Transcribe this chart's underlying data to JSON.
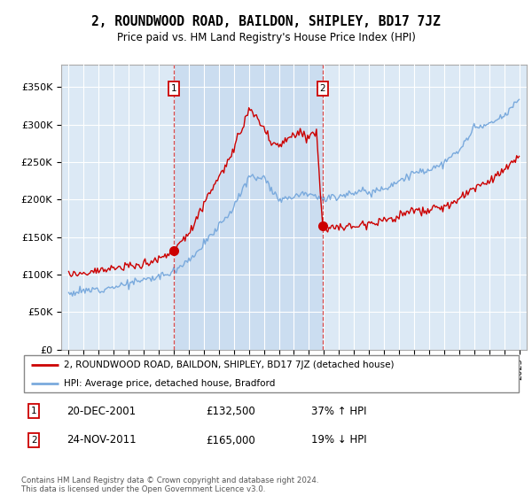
{
  "title": "2, ROUNDWOOD ROAD, BAILDON, SHIPLEY, BD17 7JZ",
  "subtitle": "Price paid vs. HM Land Registry's House Price Index (HPI)",
  "hpi_label": "HPI: Average price, detached house, Bradford",
  "property_label": "2, ROUNDWOOD ROAD, BAILDON, SHIPLEY, BD17 7JZ (detached house)",
  "purchase1_date": "20-DEC-2001",
  "purchase1_price": 132500,
  "purchase1_pct": "37%",
  "purchase1_dir": "↑",
  "purchase2_date": "24-NOV-2011",
  "purchase2_price": 165000,
  "purchase2_pct": "19%",
  "purchase2_dir": "↓",
  "footer": "Contains HM Land Registry data © Crown copyright and database right 2024.\nThis data is licensed under the Open Government Licence v3.0.",
  "red_color": "#cc0000",
  "blue_color": "#7aaadd",
  "bg_color": "#dce9f5",
  "shade_color": "#c5d9ee",
  "ylim": [
    0,
    380000
  ],
  "yticks": [
    0,
    50000,
    100000,
    150000,
    200000,
    250000,
    300000,
    350000
  ],
  "ytick_labels": [
    "£0",
    "£50K",
    "£100K",
    "£150K",
    "£200K",
    "£250K",
    "£300K",
    "£350K"
  ]
}
